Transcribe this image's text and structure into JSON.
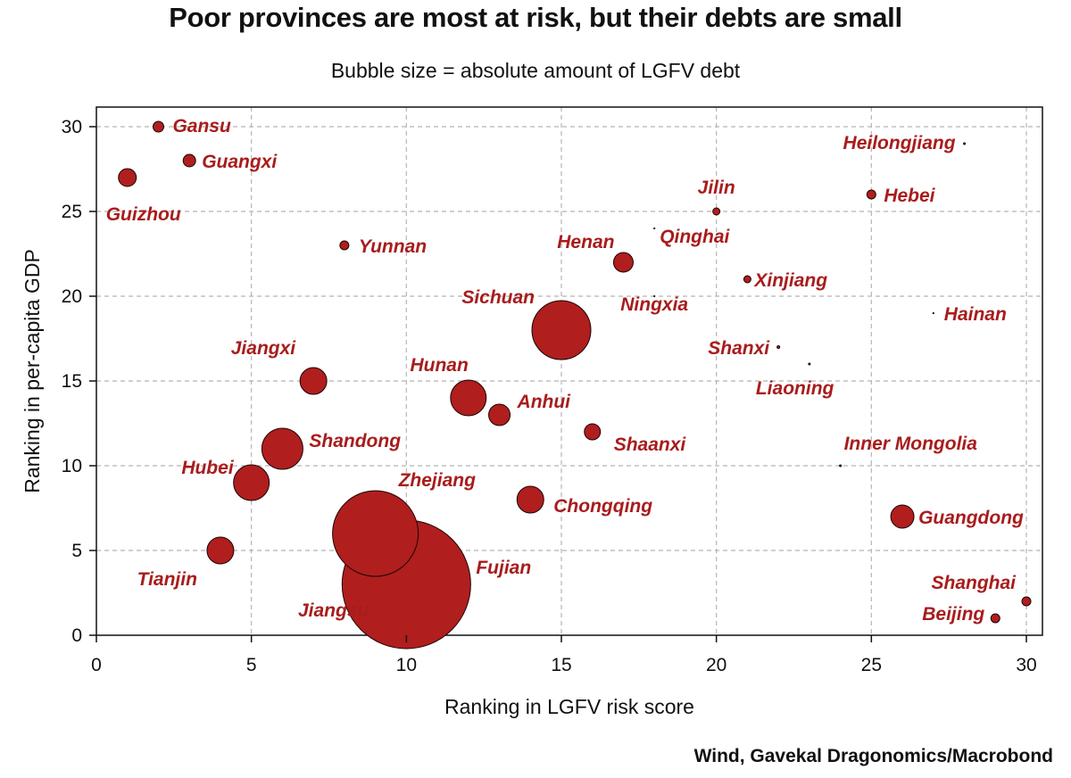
{
  "chart_data": {
    "type": "scatter",
    "title": "Poor provinces are most at risk, but their debts are small",
    "subtitle": "Bubble size = absolute amount of LGFV debt",
    "xlabel": "Ranking in LGFV risk score",
    "ylabel": "Ranking in per-capita GDP",
    "xlim": [
      0,
      30
    ],
    "ylim": [
      0,
      30
    ],
    "xticks": [
      0,
      5,
      10,
      15,
      20,
      25,
      30
    ],
    "yticks": [
      0,
      5,
      10,
      15,
      20,
      25,
      30
    ],
    "grid": true,
    "bubble_color": "#b01e1e",
    "label_color": "#a81c1c",
    "size_unit": "relative bubble size (LGFV debt, approximate)",
    "points": [
      {
        "name": "Gansu",
        "x": 2,
        "y": 30,
        "size": 6
      },
      {
        "name": "Guangxi",
        "x": 3,
        "y": 28,
        "size": 7
      },
      {
        "name": "Guizhou",
        "x": 1,
        "y": 27,
        "size": 10
      },
      {
        "name": "Yunnan",
        "x": 8,
        "y": 23,
        "size": 5
      },
      {
        "name": "Jilin",
        "x": 20,
        "y": 25,
        "size": 4
      },
      {
        "name": "Hebei",
        "x": 25,
        "y": 26,
        "size": 5
      },
      {
        "name": "Heilongjiang",
        "x": 28,
        "y": 29,
        "size": 1
      },
      {
        "name": "Qinghai",
        "x": 18,
        "y": 24,
        "size": 0.5
      },
      {
        "name": "Henan",
        "x": 17,
        "y": 22,
        "size": 11
      },
      {
        "name": "Xinjiang",
        "x": 21,
        "y": 21,
        "size": 4
      },
      {
        "name": "Ningxia",
        "x": 18,
        "y": 20,
        "size": 0.5
      },
      {
        "name": "Hainan",
        "x": 27,
        "y": 19,
        "size": 0.5
      },
      {
        "name": "Sichuan",
        "x": 15,
        "y": 18,
        "size": 33
      },
      {
        "name": "Shanxi",
        "x": 22,
        "y": 17,
        "size": 1.5
      },
      {
        "name": "Liaoning",
        "x": 23,
        "y": 16,
        "size": 1
      },
      {
        "name": "Jiangxi",
        "x": 7,
        "y": 15,
        "size": 15
      },
      {
        "name": "Hunan",
        "x": 12,
        "y": 14,
        "size": 20
      },
      {
        "name": "Anhui",
        "x": 13,
        "y": 13,
        "size": 12
      },
      {
        "name": "Shaanxi",
        "x": 16,
        "y": 12,
        "size": 9
      },
      {
        "name": "Shandong",
        "x": 6,
        "y": 11,
        "size": 23
      },
      {
        "name": "Inner Mongolia",
        "x": 24,
        "y": 10,
        "size": 1
      },
      {
        "name": "Hubei",
        "x": 5,
        "y": 9,
        "size": 20
      },
      {
        "name": "Zhejiang",
        "x": 9,
        "y": 6,
        "size": 48
      },
      {
        "name": "Chongqing",
        "x": 14,
        "y": 8,
        "size": 15
      },
      {
        "name": "Guangdong",
        "x": 26,
        "y": 7,
        "size": 13
      },
      {
        "name": "Tianjin",
        "x": 4,
        "y": 5,
        "size": 15
      },
      {
        "name": "Jiangsu",
        "x": 10,
        "y": 3,
        "size": 72
      },
      {
        "name": "Fujian",
        "x": 10,
        "y": 3,
        "size": 0
      },
      {
        "name": "Shanghai",
        "x": 30,
        "y": 2,
        "size": 5
      },
      {
        "name": "Beijing",
        "x": 29,
        "y": 1,
        "size": 5
      }
    ]
  },
  "source": "Wind, Gavekal Dragonomics/Macrobond"
}
